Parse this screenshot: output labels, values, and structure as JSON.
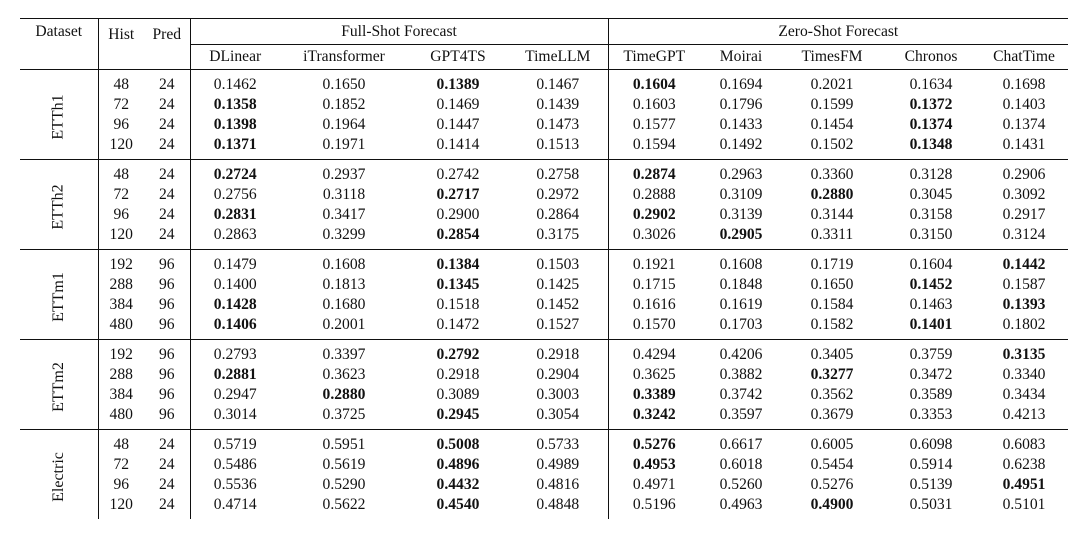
{
  "table": {
    "headers": {
      "dataset": "Dataset",
      "hist": "Hist",
      "pred": "Pred",
      "full_shot": "Full-Shot Forecast",
      "zero_shot": "Zero-Shot Forecast",
      "full_models": [
        "DLinear",
        "iTransformer",
        "GPT4TS",
        "TimeLLM"
      ],
      "zero_models": [
        "TimeGPT",
        "Moirai",
        "TimesFM",
        "Chronos",
        "ChatTime"
      ]
    },
    "groups": [
      {
        "name": "ETTh1",
        "rows": [
          {
            "hist": "48",
            "pred": "24",
            "values": [
              "0.1462",
              "0.1650",
              "0.1389",
              "0.1467",
              "0.1604",
              "0.1694",
              "0.2021",
              "0.1634",
              "0.1698"
            ],
            "bold": [
              false,
              false,
              true,
              false,
              true,
              false,
              false,
              false,
              false
            ]
          },
          {
            "hist": "72",
            "pred": "24",
            "values": [
              "0.1358",
              "0.1852",
              "0.1469",
              "0.1439",
              "0.1603",
              "0.1796",
              "0.1599",
              "0.1372",
              "0.1403"
            ],
            "bold": [
              true,
              false,
              false,
              false,
              false,
              false,
              false,
              true,
              false
            ]
          },
          {
            "hist": "96",
            "pred": "24",
            "values": [
              "0.1398",
              "0.1964",
              "0.1447",
              "0.1473",
              "0.1577",
              "0.1433",
              "0.1454",
              "0.1374",
              "0.1374"
            ],
            "bold": [
              true,
              false,
              false,
              false,
              false,
              false,
              false,
              true,
              false
            ]
          },
          {
            "hist": "120",
            "pred": "24",
            "values": [
              "0.1371",
              "0.1971",
              "0.1414",
              "0.1513",
              "0.1594",
              "0.1492",
              "0.1502",
              "0.1348",
              "0.1431"
            ],
            "bold": [
              true,
              false,
              false,
              false,
              false,
              false,
              false,
              true,
              false
            ]
          }
        ]
      },
      {
        "name": "ETTh2",
        "rows": [
          {
            "hist": "48",
            "pred": "24",
            "values": [
              "0.2724",
              "0.2937",
              "0.2742",
              "0.2758",
              "0.2874",
              "0.2963",
              "0.3360",
              "0.3128",
              "0.2906"
            ],
            "bold": [
              true,
              false,
              false,
              false,
              true,
              false,
              false,
              false,
              false
            ]
          },
          {
            "hist": "72",
            "pred": "24",
            "values": [
              "0.2756",
              "0.3118",
              "0.2717",
              "0.2972",
              "0.2888",
              "0.3109",
              "0.2880",
              "0.3045",
              "0.3092"
            ],
            "bold": [
              false,
              false,
              true,
              false,
              false,
              false,
              true,
              false,
              false
            ]
          },
          {
            "hist": "96",
            "pred": "24",
            "values": [
              "0.2831",
              "0.3417",
              "0.2900",
              "0.2864",
              "0.2902",
              "0.3139",
              "0.3144",
              "0.3158",
              "0.2917"
            ],
            "bold": [
              true,
              false,
              false,
              false,
              true,
              false,
              false,
              false,
              false
            ]
          },
          {
            "hist": "120",
            "pred": "24",
            "values": [
              "0.2863",
              "0.3299",
              "0.2854",
              "0.3175",
              "0.3026",
              "0.2905",
              "0.3311",
              "0.3150",
              "0.3124"
            ],
            "bold": [
              false,
              false,
              true,
              false,
              false,
              true,
              false,
              false,
              false
            ]
          }
        ]
      },
      {
        "name": "ETTm1",
        "rows": [
          {
            "hist": "192",
            "pred": "96",
            "values": [
              "0.1479",
              "0.1608",
              "0.1384",
              "0.1503",
              "0.1921",
              "0.1608",
              "0.1719",
              "0.1604",
              "0.1442"
            ],
            "bold": [
              false,
              false,
              true,
              false,
              false,
              false,
              false,
              false,
              true
            ]
          },
          {
            "hist": "288",
            "pred": "96",
            "values": [
              "0.1400",
              "0.1813",
              "0.1345",
              "0.1425",
              "0.1715",
              "0.1848",
              "0.1650",
              "0.1452",
              "0.1587"
            ],
            "bold": [
              false,
              false,
              true,
              false,
              false,
              false,
              false,
              true,
              false
            ]
          },
          {
            "hist": "384",
            "pred": "96",
            "values": [
              "0.1428",
              "0.1680",
              "0.1518",
              "0.1452",
              "0.1616",
              "0.1619",
              "0.1584",
              "0.1463",
              "0.1393"
            ],
            "bold": [
              true,
              false,
              false,
              false,
              false,
              false,
              false,
              false,
              true
            ]
          },
          {
            "hist": "480",
            "pred": "96",
            "values": [
              "0.1406",
              "0.2001",
              "0.1472",
              "0.1527",
              "0.1570",
              "0.1703",
              "0.1582",
              "0.1401",
              "0.1802"
            ],
            "bold": [
              true,
              false,
              false,
              false,
              false,
              false,
              false,
              true,
              false
            ]
          }
        ]
      },
      {
        "name": "ETTm2",
        "rows": [
          {
            "hist": "192",
            "pred": "96",
            "values": [
              "0.2793",
              "0.3397",
              "0.2792",
              "0.2918",
              "0.4294",
              "0.4206",
              "0.3405",
              "0.3759",
              "0.3135"
            ],
            "bold": [
              false,
              false,
              true,
              false,
              false,
              false,
              false,
              false,
              true
            ]
          },
          {
            "hist": "288",
            "pred": "96",
            "values": [
              "0.2881",
              "0.3623",
              "0.2918",
              "0.2904",
              "0.3625",
              "0.3882",
              "0.3277",
              "0.3472",
              "0.3340"
            ],
            "bold": [
              true,
              false,
              false,
              false,
              false,
              false,
              true,
              false,
              false
            ]
          },
          {
            "hist": "384",
            "pred": "96",
            "values": [
              "0.2947",
              "0.2880",
              "0.3089",
              "0.3003",
              "0.3389",
              "0.3742",
              "0.3562",
              "0.3589",
              "0.3434"
            ],
            "bold": [
              false,
              true,
              false,
              false,
              true,
              false,
              false,
              false,
              false
            ]
          },
          {
            "hist": "480",
            "pred": "96",
            "values": [
              "0.3014",
              "0.3725",
              "0.2945",
              "0.3054",
              "0.3242",
              "0.3597",
              "0.3679",
              "0.3353",
              "0.4213"
            ],
            "bold": [
              false,
              false,
              true,
              false,
              true,
              false,
              false,
              false,
              false
            ]
          }
        ]
      },
      {
        "name": "Electric",
        "rows": [
          {
            "hist": "48",
            "pred": "24",
            "values": [
              "0.5719",
              "0.5951",
              "0.5008",
              "0.5733",
              "0.5276",
              "0.6617",
              "0.6005",
              "0.6098",
              "0.6083"
            ],
            "bold": [
              false,
              false,
              true,
              false,
              true,
              false,
              false,
              false,
              false
            ]
          },
          {
            "hist": "72",
            "pred": "24",
            "values": [
              "0.5486",
              "0.5619",
              "0.4896",
              "0.4989",
              "0.4953",
              "0.6018",
              "0.5454",
              "0.5914",
              "0.6238"
            ],
            "bold": [
              false,
              false,
              true,
              false,
              true,
              false,
              false,
              false,
              false
            ]
          },
          {
            "hist": "96",
            "pred": "24",
            "values": [
              "0.5536",
              "0.5290",
              "0.4432",
              "0.4816",
              "0.4971",
              "0.5260",
              "0.5276",
              "0.5139",
              "0.4951"
            ],
            "bold": [
              false,
              false,
              true,
              false,
              false,
              false,
              false,
              false,
              true
            ]
          },
          {
            "hist": "120",
            "pred": "24",
            "values": [
              "0.4714",
              "0.5622",
              "0.4540",
              "0.4848",
              "0.5196",
              "0.4963",
              "0.4900",
              "0.5031",
              "0.5101"
            ],
            "bold": [
              false,
              false,
              true,
              false,
              false,
              false,
              true,
              false,
              false
            ]
          }
        ]
      }
    ]
  }
}
